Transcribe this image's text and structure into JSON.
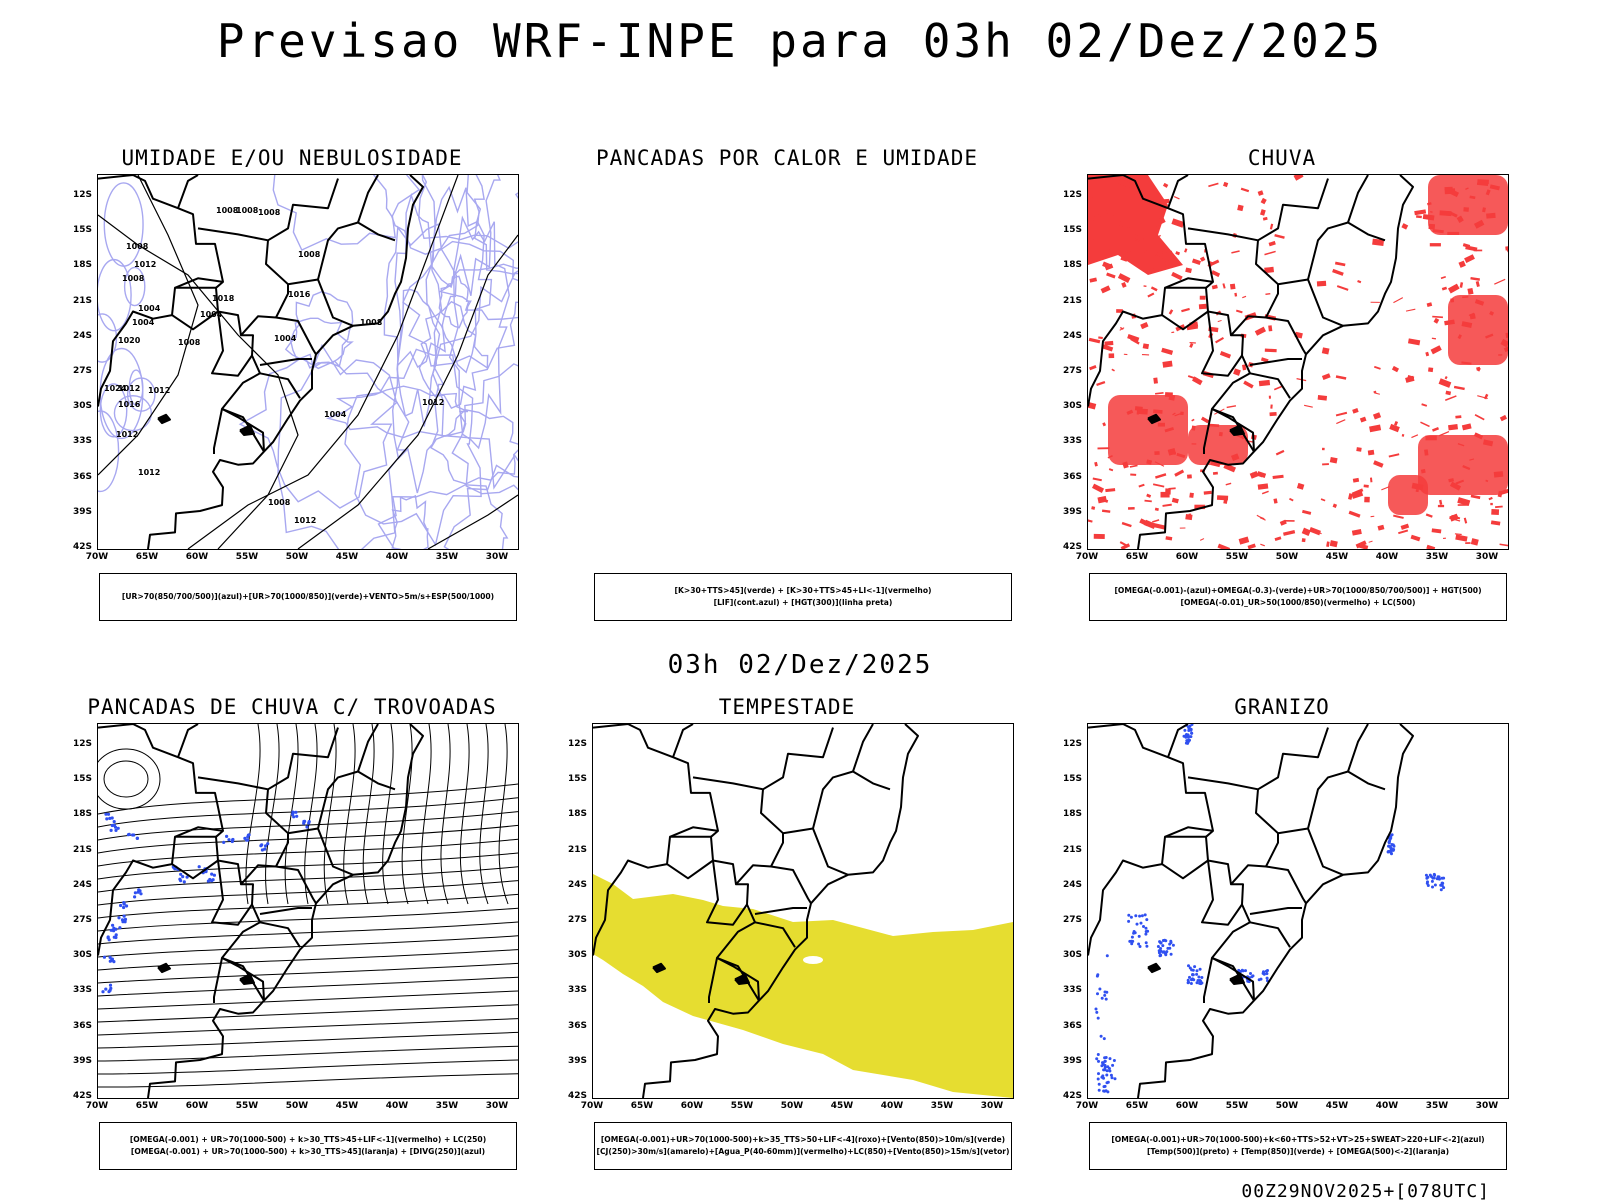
{
  "title": "Previsao WRF-INPE  para 03h 02/Dez/2025",
  "subtitle": "03h 02/Dez/2025",
  "footer": "00Z29NOV2025+[078UTC]",
  "axes": {
    "lat_labels": [
      "12S",
      "15S",
      "18S",
      "21S",
      "24S",
      "27S",
      "30S",
      "33S",
      "36S",
      "39S",
      "42S"
    ],
    "lon_labels": [
      "70W",
      "65W",
      "60W",
      "55W",
      "50W",
      "45W",
      "40W",
      "35W",
      "30W"
    ]
  },
  "colors": {
    "contour_blue": "#a8a8f0",
    "rain_red": "#f43c3c",
    "storm_yellow": "#e6dd30",
    "dot_blue": "#3050f0"
  },
  "panels": [
    {
      "id": "umidade",
      "title": "UMIDADE E/OU NEBULOSIDADE",
      "legend": [
        "[UR>70(850/700/500)](azul)+[UR>70(1000/850)](verde)+VENTO>5m/s+ESP(500/1000)"
      ],
      "contour_labels": [
        "1008",
        "1008",
        "1008",
        "1008",
        "1012",
        "1008",
        "1008",
        "1016",
        "1004",
        "1018",
        "1004",
        "1004",
        "1020",
        "1008",
        "1004",
        "1008",
        "1012",
        "1012",
        "1024",
        "1016",
        "1012",
        "1004",
        "1012",
        "1008",
        "1012",
        "1012"
      ]
    },
    {
      "id": "pancadas-calor",
      "title": "PANCADAS POR CALOR E UMIDADE",
      "legend": [
        "[K>30+TTS>45](verde) + [K>30+TTS>45+LI<-1](vermelho)",
        "[LIF](cont.azul) + [HGT(300)](linha preta)"
      ]
    },
    {
      "id": "chuva",
      "title": "CHUVA",
      "legend": [
        "[OMEGA(-0.001)-(azul)+OMEGA(-0.3)-(verde)+UR>70(1000/850/700/500)] + HGT(500)",
        "[OMEGA(-0.01)_UR>50(1000/850)(vermelho) + LC(500)"
      ]
    },
    {
      "id": "trovoadas",
      "title": "PANCADAS DE CHUVA C/ TROVOADAS",
      "legend": [
        "[OMEGA(-0.001) + UR>70(1000-500) + k>30_TTS>45+LIF<-1](vermelho) + LC(250)",
        "[OMEGA(-0.001) + UR>70(1000-500) + k>30_TTS>45](laranja) + [DIVG(250)](azul)"
      ]
    },
    {
      "id": "tempestade",
      "title": "TEMPESTADE",
      "legend": [
        "[OMEGA(-0.001)+UR>70(1000-500)+k>35_TTS>50+LIF<-4](roxo)+[Vento(850)>10m/s](verde)",
        "[CJ(250)>30m/s](amarelo)+[Agua_P(40-60mm)](vermelho)+LC(850)+[Vento(850)>15m/s](vetor)"
      ]
    },
    {
      "id": "granizo",
      "title": "GRANIZO",
      "legend": [
        "[OMEGA(-0.001)+UR>70(1000-500)+k<60+TTS>52+VT>25+SWEAT>220+LIF<-2](azul)",
        "[Temp(500)](preto) + [Temp(850)](verde) + [OMEGA(500)<-2](laranja)"
      ]
    }
  ]
}
